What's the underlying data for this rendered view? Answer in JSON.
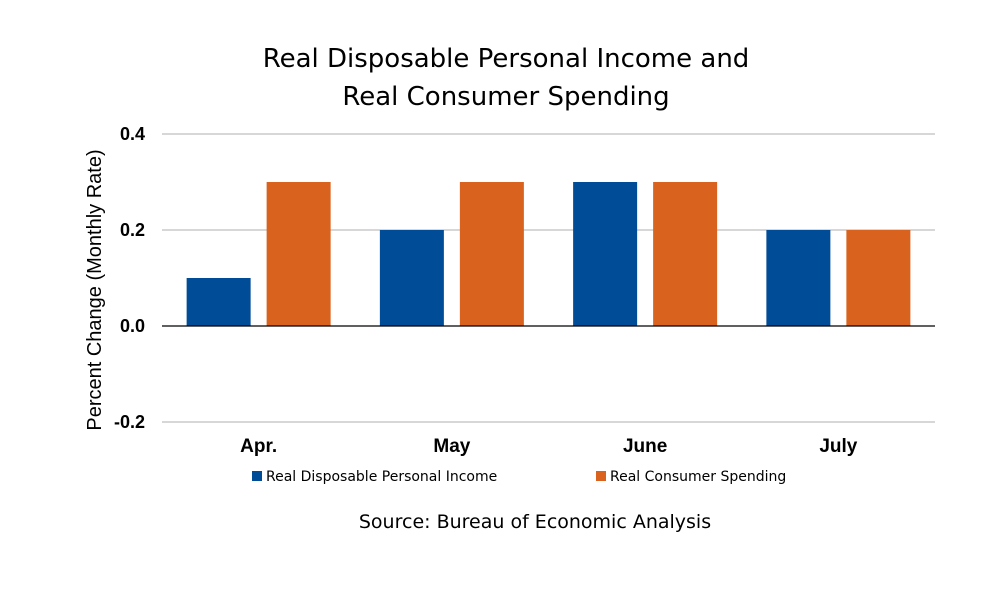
{
  "chart_data": {
    "type": "bar",
    "title_lines": [
      "Real Disposable Personal Income and",
      "Real Consumer Spending"
    ],
    "ylabel": "Percent Change (Monthly Rate)",
    "xlabel": "",
    "categories": [
      "Apr.",
      "May",
      "June",
      "July"
    ],
    "series": [
      {
        "name": "Real Disposable Personal Income",
        "values": [
          0.1,
          0.2,
          0.3,
          0.2
        ],
        "color": "#004c97"
      },
      {
        "name": "Real Consumer Spending",
        "values": [
          0.3,
          0.3,
          0.3,
          0.2
        ],
        "color": "#d9621e"
      }
    ],
    "ylim": [
      -0.2,
      0.4
    ],
    "yticks": [
      -0.2,
      0.0,
      0.2,
      0.4
    ],
    "ytick_labels": [
      "-0.2",
      "0.0",
      "0.2",
      "0.4"
    ],
    "grid": true,
    "legend_position": "bottom",
    "source": "Source:  Bureau of Economic Analysis"
  },
  "colors": {
    "grid": "#bfbfbf",
    "zero_line": "#000000"
  }
}
